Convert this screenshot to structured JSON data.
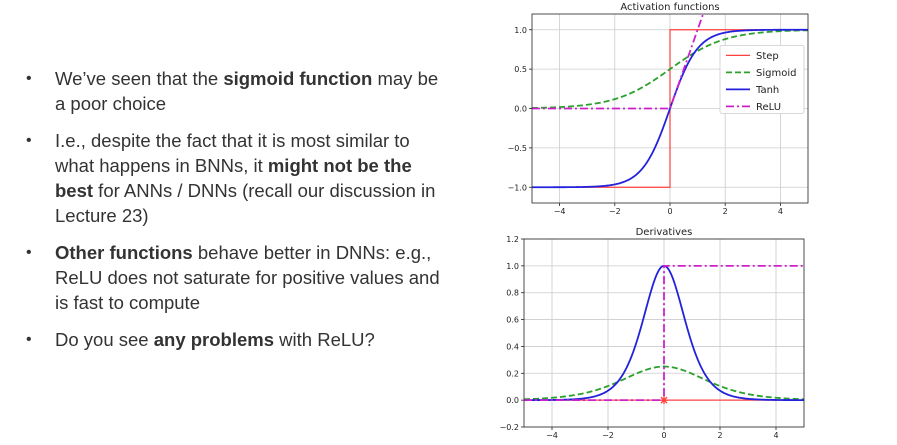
{
  "bullets": [
    {
      "segments": [
        {
          "text": "We’ve seen that the ",
          "bold": false
        },
        {
          "text": "sigmoid function",
          "bold": true
        },
        {
          "text": " may be a poor choice",
          "bold": false
        }
      ]
    },
    {
      "segments": [
        {
          "text": "I.e., despite the fact that it is most similar to what happens in BNNs, it ",
          "bold": false
        },
        {
          "text": "might not be the best",
          "bold": true
        },
        {
          "text": " for ANNs / DNNs (recall our discussion in Lecture 23)",
          "bold": false
        }
      ]
    },
    {
      "segments": [
        {
          "text": "Other functions",
          "bold": true
        },
        {
          "text": " behave better in DNNs: e.g., ReLU does not saturate for positive values and is fast to compute",
          "bold": false
        }
      ]
    },
    {
      "segments": [
        {
          "text": "Do you see ",
          "bold": false
        },
        {
          "text": "any problems",
          "bold": true
        },
        {
          "text": " with ReLU?",
          "bold": false
        }
      ]
    }
  ],
  "chart_data": [
    {
      "type": "line",
      "title": "Activation functions",
      "xlim": [
        -5,
        5
      ],
      "ylim": [
        -1.2,
        1.2
      ],
      "xticks": [
        -4,
        -2,
        0,
        2,
        4
      ],
      "yticks": [
        -1.0,
        -0.5,
        0.0,
        0.5,
        1.0
      ],
      "grid": true,
      "legend": "center-right",
      "series": [
        {
          "name": "Step",
          "function": "step",
          "color": "#ff4040",
          "style": "solid"
        },
        {
          "name": "Sigmoid",
          "function": "sigmoid",
          "color": "#2ca02c",
          "style": "dashed"
        },
        {
          "name": "Tanh",
          "function": "tanh",
          "color": "#2222dd",
          "style": "solid"
        },
        {
          "name": "ReLU",
          "function": "relu",
          "color": "#cc22cc",
          "style": "dashdot"
        }
      ]
    },
    {
      "type": "line",
      "title": "Derivatives",
      "xlim": [
        -5,
        5
      ],
      "ylim": [
        -0.2,
        1.2
      ],
      "xticks": [
        -4,
        -2,
        0,
        2,
        4
      ],
      "yticks": [
        -0.2,
        0.0,
        0.2,
        0.4,
        0.6,
        0.8,
        1.0,
        1.2
      ],
      "grid": true,
      "series": [
        {
          "name": "Step",
          "function": "step_derivative",
          "color": "#ff4040",
          "style": "solid",
          "marker_at": [
            0,
            0
          ]
        },
        {
          "name": "Sigmoid",
          "function": "sigmoid_derivative",
          "color": "#2ca02c",
          "style": "dashed"
        },
        {
          "name": "Tanh",
          "function": "tanh_derivative",
          "color": "#2222dd",
          "style": "solid"
        },
        {
          "name": "ReLU",
          "function": "relu_derivative",
          "color": "#cc22cc",
          "style": "dashdot"
        }
      ]
    }
  ]
}
